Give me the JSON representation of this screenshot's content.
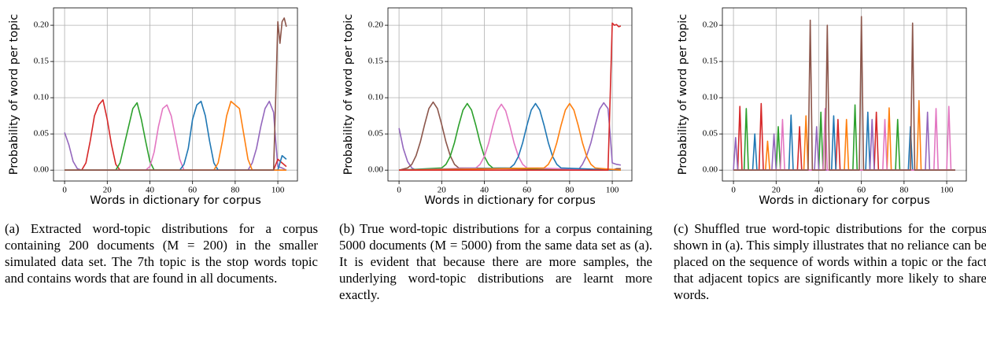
{
  "chart_data": [
    {
      "type": "line",
      "ylabel": "Probability of word per topic",
      "xlabel": "Words in dictionary for corpus",
      "caption": "(a) Extracted word-topic distributions for a corpus containing 200 documents (M = 200) in the smaller simulated data set. The 7th topic is the stop words topic and contains words that are found in all documents.",
      "xlim": [
        -5.2,
        109.2
      ],
      "ylim": [
        -0.015,
        0.224
      ],
      "xticks": [
        0,
        20,
        40,
        60,
        80,
        100
      ],
      "yticks": [
        {
          "value": 0,
          "label": "0.00"
        },
        {
          "value": 0.05,
          "label": "0.05"
        },
        {
          "value": 0.1,
          "label": "0.10"
        },
        {
          "value": 0.15,
          "label": "0.15"
        },
        {
          "value": 0.2,
          "label": "0.20"
        }
      ],
      "grid": true,
      "series": [
        {
          "color": "#9467bd",
          "x": [
            0,
            2,
            4,
            6,
            8,
            86,
            88,
            90,
            92,
            94,
            96,
            98,
            99,
            100,
            102,
            104
          ],
          "values": [
            0.052,
            0.035,
            0.012,
            0.002,
            0,
            0,
            0.01,
            0.03,
            0.06,
            0.085,
            0.095,
            0.08,
            0.04,
            0.005,
            0.003,
            0
          ]
        },
        {
          "color": "#d62728",
          "x": [
            0,
            8,
            10,
            12,
            14,
            16,
            18,
            20,
            22,
            24,
            26,
            98,
            100,
            102,
            104
          ],
          "values": [
            0,
            0,
            0.01,
            0.04,
            0.075,
            0.09,
            0.097,
            0.07,
            0.035,
            0.008,
            0,
            0,
            0.015,
            0.01,
            0.005
          ]
        },
        {
          "color": "#2ca02c",
          "x": [
            0,
            24,
            26,
            28,
            30,
            32,
            34,
            36,
            38,
            40,
            42,
            104
          ],
          "values": [
            0,
            0,
            0.01,
            0.035,
            0.06,
            0.085,
            0.093,
            0.07,
            0.04,
            0.012,
            0,
            0
          ]
        },
        {
          "color": "#e377c2",
          "x": [
            0,
            38,
            40,
            42,
            44,
            46,
            48,
            50,
            52,
            54,
            56,
            104
          ],
          "values": [
            0,
            0,
            0.005,
            0.025,
            0.06,
            0.085,
            0.09,
            0.075,
            0.045,
            0.015,
            0,
            0
          ]
        },
        {
          "color": "#1f77b4",
          "x": [
            0,
            54,
            56,
            58,
            60,
            62,
            64,
            66,
            68,
            70,
            72,
            100,
            102,
            104
          ],
          "values": [
            0,
            0,
            0.008,
            0.03,
            0.07,
            0.09,
            0.095,
            0.075,
            0.04,
            0.01,
            0,
            0,
            0.02,
            0.015
          ]
        },
        {
          "color": "#ff7f0e",
          "x": [
            0,
            70,
            72,
            74,
            76,
            78,
            80,
            82,
            84,
            86,
            88,
            104
          ],
          "values": [
            0,
            0,
            0.01,
            0.04,
            0.075,
            0.095,
            0.09,
            0.085,
            0.05,
            0.015,
            0,
            0
          ]
        },
        {
          "color": "#8c564b",
          "x": [
            0,
            98,
            99,
            100,
            101,
            102,
            103,
            104
          ],
          "values": [
            0,
            0,
            0.1,
            0.205,
            0.175,
            0.205,
            0.21,
            0.198
          ]
        }
      ]
    },
    {
      "type": "line",
      "ylabel": "Probability of word per topic",
      "xlabel": "Words in dictionary for corpus",
      "caption": "(b) True word-topic distributions for a corpus containing 5000 documents (M = 5000) from the same data set as (a). It is evident that because there are more samples, the underlying word-topic distributions are learnt more exactly.",
      "xlim": [
        -5.2,
        109.2
      ],
      "ylim": [
        -0.015,
        0.224
      ],
      "xticks": [
        0,
        20,
        40,
        60,
        80,
        100
      ],
      "yticks": [
        {
          "value": 0,
          "label": "0.00"
        },
        {
          "value": 0.05,
          "label": "0.05"
        },
        {
          "value": 0.1,
          "label": "0.10"
        },
        {
          "value": 0.15,
          "label": "0.15"
        },
        {
          "value": 0.2,
          "label": "0.20"
        }
      ],
      "grid": true,
      "series": [
        {
          "color": "#9467bd",
          "x": [
            0,
            2,
            4,
            6,
            8,
            84,
            86,
            88,
            90,
            92,
            94,
            96,
            98,
            99,
            100,
            102,
            104
          ],
          "values": [
            0.058,
            0.03,
            0.012,
            0.003,
            0,
            0,
            0.008,
            0.02,
            0.038,
            0.062,
            0.084,
            0.093,
            0.085,
            0.05,
            0.01,
            0.008,
            0.007
          ]
        },
        {
          "color": "#8c564b",
          "x": [
            0,
            4,
            6,
            8,
            10,
            12,
            14,
            16,
            18,
            20,
            22,
            24,
            26,
            28,
            100,
            102,
            104
          ],
          "values": [
            0,
            0.003,
            0.008,
            0.02,
            0.039,
            0.063,
            0.085,
            0.094,
            0.085,
            0.063,
            0.039,
            0.02,
            0.008,
            0.003,
            0,
            0.002,
            0.002
          ]
        },
        {
          "color": "#2ca02c",
          "x": [
            0,
            20,
            22,
            24,
            26,
            28,
            30,
            32,
            34,
            36,
            38,
            40,
            42,
            44,
            104
          ],
          "values": [
            0,
            0.003,
            0.008,
            0.019,
            0.038,
            0.062,
            0.083,
            0.092,
            0.083,
            0.062,
            0.038,
            0.019,
            0.008,
            0.003,
            0
          ]
        },
        {
          "color": "#e377c2",
          "x": [
            0,
            36,
            38,
            40,
            42,
            44,
            46,
            48,
            50,
            52,
            54,
            56,
            58,
            60,
            104
          ],
          "values": [
            0,
            0.003,
            0.008,
            0.019,
            0.037,
            0.061,
            0.082,
            0.091,
            0.082,
            0.061,
            0.037,
            0.019,
            0.008,
            0.003,
            0
          ]
        },
        {
          "color": "#1f77b4",
          "x": [
            0,
            52,
            54,
            56,
            58,
            60,
            62,
            64,
            66,
            68,
            70,
            72,
            74,
            76,
            104
          ],
          "values": [
            0,
            0.003,
            0.008,
            0.019,
            0.038,
            0.062,
            0.083,
            0.092,
            0.083,
            0.062,
            0.038,
            0.019,
            0.008,
            0.003,
            0
          ]
        },
        {
          "color": "#ff7f0e",
          "x": [
            0,
            68,
            70,
            72,
            74,
            76,
            78,
            80,
            82,
            84,
            86,
            88,
            90,
            92,
            104
          ],
          "values": [
            0,
            0.003,
            0.008,
            0.019,
            0.038,
            0.062,
            0.083,
            0.092,
            0.083,
            0.062,
            0.038,
            0.019,
            0.008,
            0.003,
            0
          ]
        },
        {
          "color": "#d62728",
          "x": [
            0,
            98,
            99,
            100,
            101,
            102,
            103,
            104
          ],
          "values": [
            0,
            0,
            0.1,
            0.203,
            0.2,
            0.201,
            0.198,
            0.199
          ]
        }
      ]
    },
    {
      "type": "line",
      "ylabel": "Probability of word per topic",
      "xlabel": "Words in dictionary for corpus",
      "caption": "(c) Shuffled true word-topic distributions for the corpus shown in (a). This simply illustrates that no reliance can be placed on the sequence of words within a topic or the fact that adjacent topics are significantly more likely to share words.",
      "xlim": [
        -5.2,
        109.2
      ],
      "ylim": [
        -0.015,
        0.224
      ],
      "xticks": [
        0,
        20,
        40,
        60,
        80,
        100
      ],
      "yticks": [
        {
          "value": 0,
          "label": "0.00"
        },
        {
          "value": 0.05,
          "label": "0.05"
        },
        {
          "value": 0.1,
          "label": "0.10"
        },
        {
          "value": 0.15,
          "label": "0.15"
        },
        {
          "value": 0.2,
          "label": "0.20"
        }
      ],
      "grid": true,
      "series": [
        {
          "color": "#d62728",
          "x": [
            0,
            2,
            3,
            4,
            12,
            13,
            14,
            30,
            31,
            32,
            48,
            49,
            50,
            66,
            67,
            68,
            104
          ],
          "values": [
            0,
            0,
            0.088,
            0,
            0,
            0.092,
            0,
            0,
            0.06,
            0,
            0,
            0.07,
            0,
            0,
            0.08,
            0,
            0
          ]
        },
        {
          "color": "#2ca02c",
          "x": [
            0,
            5,
            6,
            7,
            20,
            21,
            22,
            40,
            41,
            42,
            56,
            57,
            58,
            76,
            77,
            78,
            104
          ],
          "values": [
            0,
            0,
            0.085,
            0,
            0,
            0.06,
            0,
            0,
            0.08,
            0,
            0,
            0.09,
            0,
            0,
            0.07,
            0,
            0
          ]
        },
        {
          "color": "#1f77b4",
          "x": [
            0,
            9,
            10,
            11,
            26,
            27,
            28,
            46,
            47,
            48,
            62,
            63,
            64,
            82,
            83,
            84,
            104
          ],
          "values": [
            0,
            0,
            0.05,
            0,
            0,
            0.076,
            0,
            0,
            0.075,
            0,
            0,
            0.08,
            0,
            0,
            0.06,
            0,
            0
          ]
        },
        {
          "color": "#ff7f0e",
          "x": [
            0,
            15,
            16,
            17,
            33,
            34,
            35,
            52,
            53,
            54,
            72,
            73,
            74,
            86,
            87,
            88,
            104
          ],
          "values": [
            0,
            0,
            0.04,
            0,
            0,
            0.075,
            0,
            0,
            0.07,
            0,
            0,
            0.086,
            0,
            0,
            0.096,
            0,
            0
          ]
        },
        {
          "color": "#9467bd",
          "x": [
            0,
            1,
            2,
            18,
            19,
            20,
            38,
            39,
            40,
            64,
            65,
            66,
            90,
            91,
            92,
            104
          ],
          "values": [
            0,
            0.045,
            0,
            0,
            0.05,
            0,
            0,
            0.06,
            0,
            0,
            0.07,
            0,
            0,
            0.08,
            0,
            0
          ]
        },
        {
          "color": "#e377c2",
          "x": [
            0,
            22,
            23,
            24,
            42,
            43,
            44,
            70,
            71,
            72,
            94,
            95,
            96,
            100,
            101,
            102,
            104
          ],
          "values": [
            0,
            0,
            0.07,
            0,
            0,
            0.085,
            0,
            0,
            0.07,
            0,
            0,
            0.085,
            0,
            0,
            0.088,
            0,
            0
          ]
        },
        {
          "color": "#8c564b",
          "x": [
            0,
            35,
            36,
            37,
            43,
            44,
            45,
            59,
            60,
            61,
            83,
            84,
            85,
            104
          ],
          "values": [
            0,
            0,
            0.207,
            0,
            0,
            0.2,
            0,
            0,
            0.212,
            0,
            0,
            0.203,
            0,
            0
          ]
        }
      ]
    }
  ]
}
